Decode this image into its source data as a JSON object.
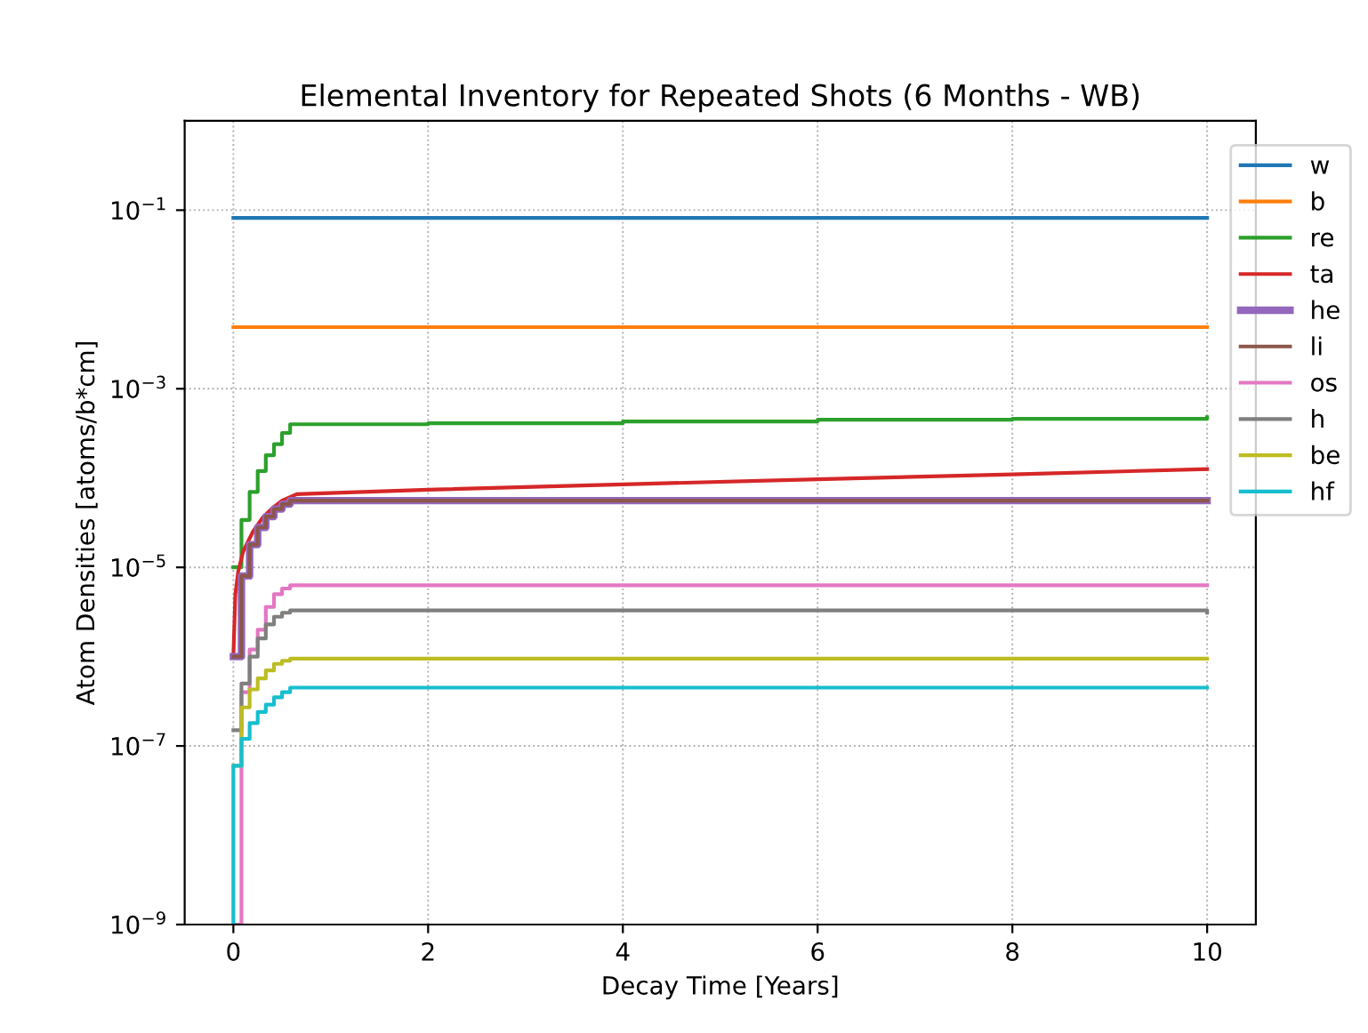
{
  "chart_data": {
    "type": "line",
    "title": "Elemental Inventory for Repeated Shots (6 Months - WB)",
    "xlabel": "Decay Time [Years]",
    "ylabel": "Atom Densities [atoms/b*cm]",
    "log": "y",
    "grid": true,
    "legend": "top right",
    "line_style": "solid",
    "marker": "none",
    "xlim": [
      -0.5,
      10.5
    ],
    "xticks": [
      0,
      2,
      4,
      6,
      8,
      10
    ],
    "ylim": [
      1e-09,
      1
    ],
    "yticks": [
      {
        "value": 1e-09,
        "label": "10$^{−9}$"
      },
      {
        "value": 1e-07,
        "label": "10$^{−7}$"
      },
      {
        "value": 1e-05,
        "label": "10$^{−5}$"
      },
      {
        "value": 0.001,
        "label": "10$^{−3}$"
      },
      {
        "value": 0.1,
        "label": "10$^{−1}$"
      }
    ],
    "series": [
      {
        "name": "w",
        "color": "#1f77b4",
        "x": [
          0,
          10
        ],
        "values": [
          0.082,
          0.082
        ]
      },
      {
        "name": "b",
        "color": "#ff7f0e",
        "x": [
          0,
          10
        ],
        "values": [
          0.0049,
          0.0049
        ]
      },
      {
        "name": "re",
        "color": "#2ca02c",
        "type": "step",
        "x": [
          0,
          0.083,
          0.167,
          0.25,
          0.333,
          0.417,
          0.5,
          0.583,
          2,
          4,
          6,
          8,
          10
        ],
        "values": [
          1e-05,
          3.4e-05,
          7e-05,
          0.00012,
          0.00018,
          0.00024,
          0.00032,
          0.0004,
          0.00041,
          0.00043,
          0.00045,
          0.00046,
          0.00048
        ]
      },
      {
        "name": "ta",
        "color": "#d62728",
        "x": [
          0,
          0.02,
          0.05,
          0.1,
          0.2,
          0.3,
          0.4,
          0.5,
          0.65,
          2,
          4,
          6,
          8,
          10
        ],
        "values": [
          1e-06,
          5e-06,
          9e-06,
          1.5e-05,
          2.5e-05,
          3.6e-05,
          4.6e-05,
          5.6e-05,
          6.6e-05,
          7.4e-05,
          8.5e-05,
          9.7e-05,
          0.00011,
          0.000126
        ]
      },
      {
        "name": "he",
        "color": "#9467bd",
        "type": "step",
        "x": [
          0,
          0.083,
          0.167,
          0.25,
          0.333,
          0.417,
          0.5,
          0.583,
          10
        ],
        "values": [
          1e-06,
          8e-06,
          1.8e-05,
          2.8e-05,
          3.7e-05,
          4.5e-05,
          5.1e-05,
          5.6e-05,
          5.6e-05
        ]
      },
      {
        "name": "li",
        "color": "#8c564b",
        "type": "step",
        "x": [
          0,
          0.083,
          0.167,
          0.25,
          0.333,
          0.417,
          0.5,
          0.583,
          10
        ],
        "values": [
          1e-06,
          8e-06,
          1.8e-05,
          2.8e-05,
          3.7e-05,
          4.5e-05,
          5.1e-05,
          5.6e-05,
          5.6e-05
        ]
      },
      {
        "name": "os",
        "color": "#e377c2",
        "type": "step",
        "x": [
          0,
          0.083,
          0.167,
          0.25,
          0.333,
          0.417,
          0.5,
          0.583,
          10
        ],
        "values": [
          1e-09,
          4e-07,
          1.2e-06,
          2e-06,
          3.6e-06,
          5e-06,
          5.8e-06,
          6.3e-06,
          6.3e-06
        ]
      },
      {
        "name": "h",
        "color": "#7f7f7f",
        "type": "step",
        "x": [
          0,
          0.083,
          0.167,
          0.25,
          0.333,
          0.417,
          0.5,
          0.583,
          10
        ],
        "values": [
          1.5e-07,
          5e-07,
          1e-06,
          1.6e-06,
          2.3e-06,
          2.8e-06,
          3.1e-06,
          3.3e-06,
          3.1e-06
        ]
      },
      {
        "name": "be",
        "color": "#bcbd22",
        "type": "step",
        "x": [
          0,
          0.083,
          0.167,
          0.25,
          0.333,
          0.417,
          0.5,
          0.583,
          10
        ],
        "values": [
          6e-08,
          2.7e-07,
          4.3e-07,
          5.7e-07,
          7e-07,
          8.3e-07,
          9e-07,
          9.5e-07,
          9.5e-07
        ]
      },
      {
        "name": "hf",
        "color": "#17becf",
        "type": "step",
        "x": [
          0,
          0,
          0.083,
          0.167,
          0.25,
          0.333,
          0.417,
          0.5,
          0.583,
          10
        ],
        "values": [
          1e-09,
          6e-08,
          1.2e-07,
          1.8e-07,
          2.4e-07,
          2.9e-07,
          3.5e-07,
          4e-07,
          4.5e-07,
          4.5e-07
        ]
      }
    ]
  }
}
